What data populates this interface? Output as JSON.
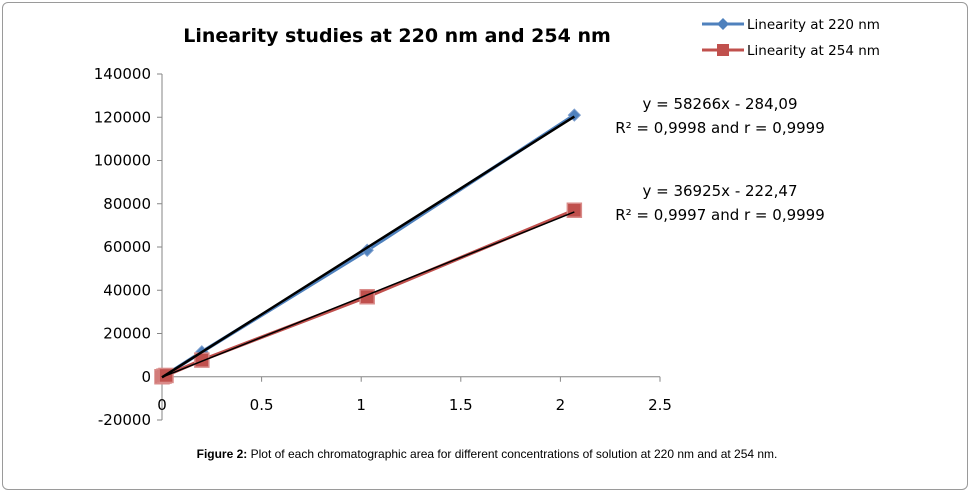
{
  "caption": {
    "label": "Figure 2:",
    "text": "Plot of each chromatographic area for different concentrations of solution at 220 nm and at 254 nm."
  },
  "chart_data": {
    "type": "line",
    "title": "Linearity studies at 220 nm and 254 nm",
    "xlabel": "",
    "ylabel": "",
    "xlim": [
      0,
      2.5
    ],
    "ylim": [
      -20000,
      140000
    ],
    "x_ticks": [
      0,
      0.5,
      1,
      1.5,
      2,
      2.5
    ],
    "x_tick_labels": [
      "0",
      "0.5",
      "1",
      "1.5",
      "2",
      "2.5"
    ],
    "y_ticks": [
      -20000,
      0,
      20000,
      40000,
      60000,
      80000,
      100000,
      120000,
      140000
    ],
    "y_tick_labels": [
      "-20000",
      "0",
      "20000",
      "40000",
      "60000",
      "80000",
      "100000",
      "120000",
      "140000"
    ],
    "grid": false,
    "legend_position": "top-right",
    "series": [
      {
        "name": "Linearity at 220 nm",
        "color": "#4f81bd",
        "marker": "diamond",
        "x": [
          0,
          0.01,
          0.02,
          0.2,
          1.03,
          2.07
        ],
        "y": [
          0,
          400,
          900,
          11500,
          58500,
          121000
        ]
      },
      {
        "name": "Linearity at 254 nm",
        "color": "#c0504d",
        "marker": "square",
        "x": [
          0,
          0.01,
          0.02,
          0.2,
          1.03,
          2.07
        ],
        "y": [
          0,
          300,
          600,
          7700,
          37000,
          77000
        ]
      }
    ],
    "trendlines": [
      {
        "series": "Linearity at 220 nm",
        "slope": 58266,
        "intercept": -284.09,
        "color": "#000000"
      },
      {
        "series": "Linearity at 254 nm",
        "slope": 36925,
        "intercept": -222.47,
        "color": "#000000"
      }
    ],
    "annotations": [
      {
        "line1": "y = 58266x - 284,09",
        "line2": "R² = 0,9998 and r = 0,9999"
      },
      {
        "line1": "y = 36925x - 222,47",
        "line2": "R² = 0,9997 and r = 0,9999"
      }
    ]
  }
}
